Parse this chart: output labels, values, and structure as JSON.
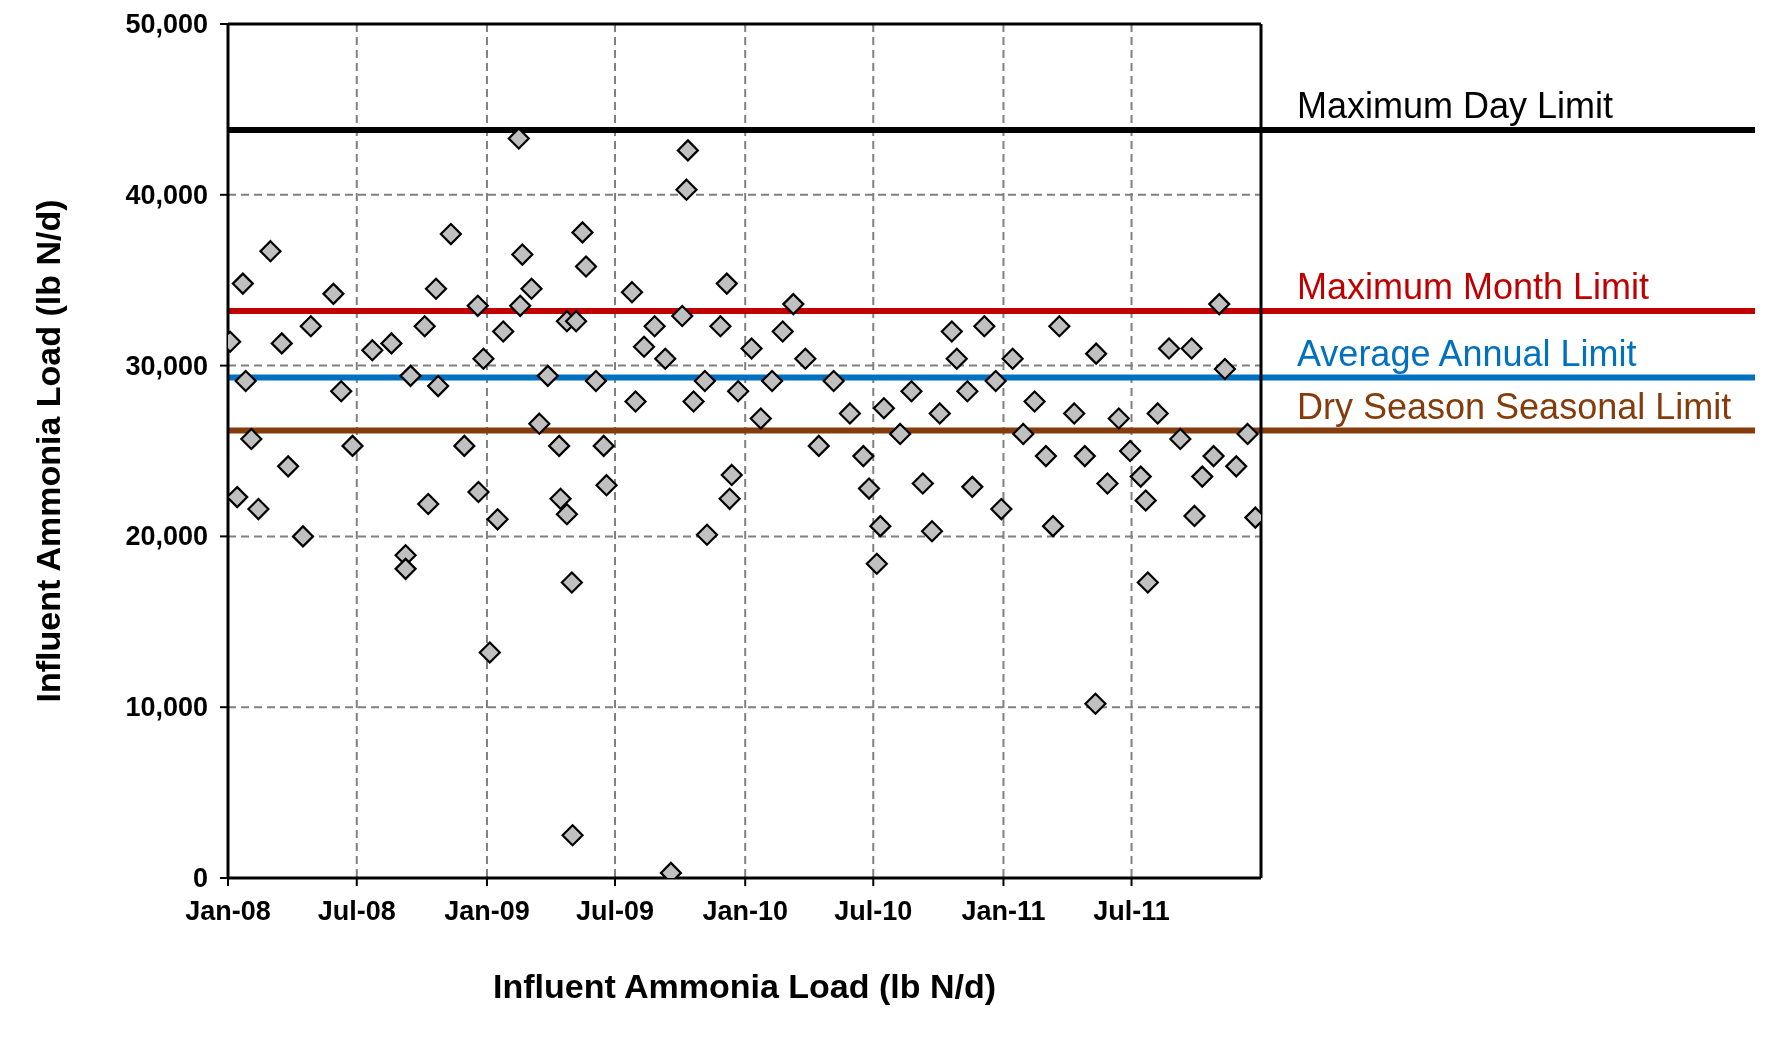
{
  "chart_data": {
    "type": "scatter",
    "xlabel": "Influent Ammonia Load (lb N/d)",
    "ylabel": "Influent Ammonia Load (lb N/d)",
    "xlim": [
      "2008-01-01",
      "2011-12-31"
    ],
    "xticks": [
      {
        "value": "2008-01-01",
        "label": "Jan-08"
      },
      {
        "value": "2008-07-01",
        "label": "Jul-08"
      },
      {
        "value": "2009-01-01",
        "label": "Jan-09"
      },
      {
        "value": "2009-07-01",
        "label": "Jul-09"
      },
      {
        "value": "2010-01-01",
        "label": "Jan-10"
      },
      {
        "value": "2010-07-01",
        "label": "Jul-10"
      },
      {
        "value": "2011-01-01",
        "label": "Jan-11"
      },
      {
        "value": "2011-07-01",
        "label": "Jul-11"
      }
    ],
    "ylim": [
      0,
      50000
    ],
    "yticks": [
      {
        "value": 0,
        "label": "0"
      },
      {
        "value": 10000,
        "label": "10,000"
      },
      {
        "value": 20000,
        "label": "20,000"
      },
      {
        "value": 30000,
        "label": "30,000"
      },
      {
        "value": 40000,
        "label": "40,000"
      },
      {
        "value": 50000,
        "label": "50,000"
      }
    ],
    "grid": true,
    "legend": false,
    "marker": "diamond",
    "series": [
      {
        "color": "#c0c0c0",
        "x": [
          "2008-01-04",
          "2008-01-14",
          "2008-01-22",
          "2008-01-26",
          "2008-02-03",
          "2008-02-13",
          "2008-03-01",
          "2008-03-17",
          "2008-03-26",
          "2008-04-16",
          "2008-04-27",
          "2008-05-29",
          "2008-06-09",
          "2008-06-25",
          "2008-07-23",
          "2008-08-19",
          "2008-09-08",
          "2008-09-08",
          "2008-09-15",
          "2008-10-05",
          "2008-10-10",
          "2008-10-21",
          "2008-10-24",
          "2008-11-11",
          "2008-11-30",
          "2008-12-19",
          "2008-12-20",
          "2008-12-27",
          "2009-01-05",
          "2009-01-16",
          "2009-01-24",
          "2009-02-15",
          "2009-02-17",
          "2009-02-20",
          "2009-03-05",
          "2009-03-16",
          "2009-03-28",
          "2009-04-13",
          "2009-04-15",
          "2009-04-24",
          "2009-04-24",
          "2009-05-01",
          "2009-05-02",
          "2009-05-07",
          "2009-05-16",
          "2009-05-21",
          "2009-06-04",
          "2009-06-15",
          "2009-06-19",
          "2009-07-25",
          "2009-07-30",
          "2009-08-11",
          "2009-08-26",
          "2009-09-10",
          "2009-09-18",
          "2009-10-04",
          "2009-10-10",
          "2009-10-12",
          "2009-10-20",
          "2009-11-05",
          "2009-11-08",
          "2009-11-27",
          "2009-12-06",
          "2009-12-10",
          "2009-12-13",
          "2009-12-22",
          "2010-01-10",
          "2010-01-23",
          "2010-02-08",
          "2010-02-23",
          "2010-03-10",
          "2010-03-27",
          "2010-04-15",
          "2010-05-06",
          "2010-05-29",
          "2010-06-17",
          "2010-06-25",
          "2010-07-06",
          "2010-07-11",
          "2010-07-16",
          "2010-08-08",
          "2010-08-24",
          "2010-09-09",
          "2010-09-22",
          "2010-10-03",
          "2010-10-20",
          "2010-10-27",
          "2010-11-11",
          "2010-11-18",
          "2010-12-05",
          "2010-12-21",
          "2010-12-29",
          "2011-01-14",
          "2011-01-29",
          "2011-02-14",
          "2011-03-02",
          "2011-03-12",
          "2011-03-21",
          "2011-04-11",
          "2011-04-26",
          "2011-05-11",
          "2011-05-12",
          "2011-05-28",
          "2011-06-13",
          "2011-06-29",
          "2011-07-14",
          "2011-07-21",
          "2011-07-24",
          "2011-08-07",
          "2011-08-23",
          "2011-09-08",
          "2011-09-24",
          "2011-09-28",
          "2011-10-09",
          "2011-10-25",
          "2011-11-02",
          "2011-11-10",
          "2011-11-26",
          "2011-12-12",
          "2011-12-23"
        ],
        "values": [
          31400,
          22300,
          34800,
          29100,
          25700,
          21600,
          36700,
          31300,
          24100,
          20000,
          32300,
          34200,
          28500,
          25300,
          30900,
          31300,
          18900,
          18100,
          29400,
          32300,
          21900,
          34500,
          28800,
          37700,
          25300,
          33500,
          22600,
          30400,
          13200,
          21000,
          32000,
          43300,
          33500,
          36500,
          34500,
          26600,
          29400,
          25300,
          22200,
          21300,
          32600,
          17300,
          2500,
          32600,
          37800,
          35800,
          29100,
          25300,
          23000,
          34300,
          27900,
          31100,
          32300,
          30400,
          300,
          32900,
          40300,
          42600,
          27900,
          29100,
          20100,
          32300,
          34800,
          22200,
          23600,
          28500,
          31000,
          26900,
          29100,
          32000,
          33600,
          30400,
          25300,
          29100,
          27200,
          24700,
          22800,
          18400,
          20600,
          27500,
          26000,
          28500,
          23100,
          20300,
          27200,
          32000,
          30400,
          28500,
          22900,
          32300,
          29100,
          21600,
          30400,
          26000,
          27900,
          24700,
          20600,
          32300,
          27200,
          24700,
          10200,
          30700,
          23100,
          26900,
          25000,
          23500,
          22100,
          17300,
          27200,
          31000,
          25700,
          31000,
          21200,
          23500,
          24700,
          33600,
          29800,
          24100,
          26000,
          21100
        ]
      }
    ],
    "ref_lines": [
      {
        "axis": "y",
        "value": 43800,
        "label": "Maximum Day Limit",
        "color": "#000000"
      },
      {
        "axis": "y",
        "value": 33200,
        "label": "Maximum Month Limit",
        "color": "#c00000"
      },
      {
        "axis": "y",
        "value": 29300,
        "label": "Average Annual Limit",
        "color": "#0070c0"
      },
      {
        "axis": "y",
        "value": 26200,
        "label": "Dry Season Seasonal Limit",
        "color": "#843c0c"
      }
    ]
  }
}
